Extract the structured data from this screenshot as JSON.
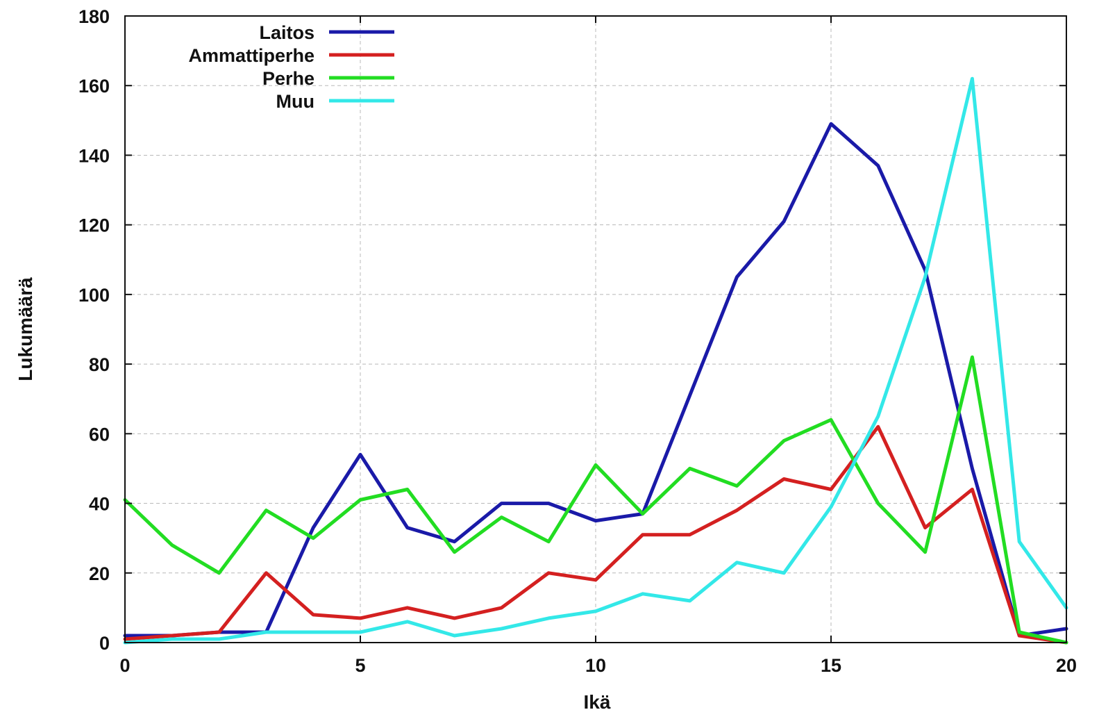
{
  "chart_data": {
    "type": "line",
    "title": "",
    "xlabel": "Ikä",
    "ylabel": "Lukumäärä",
    "xlim": [
      0,
      20
    ],
    "ylim": [
      0,
      180
    ],
    "x_ticks": [
      0,
      5,
      10,
      15,
      20
    ],
    "y_ticks": [
      0,
      20,
      40,
      60,
      80,
      100,
      120,
      140,
      160,
      180
    ],
    "grid": true,
    "legend_position": "top-left",
    "x": [
      0,
      1,
      2,
      3,
      4,
      5,
      6,
      7,
      8,
      9,
      10,
      11,
      12,
      13,
      14,
      15,
      16,
      17,
      18,
      19,
      20
    ],
    "series": [
      {
        "name": "Laitos",
        "color": "#1a1aa8",
        "values": [
          2,
          2,
          3,
          3,
          33,
          54,
          33,
          29,
          40,
          40,
          35,
          37,
          71,
          105,
          121,
          149,
          137,
          107,
          50,
          2,
          4
        ]
      },
      {
        "name": "Ammattiperhe",
        "color": "#d42020",
        "values": [
          1,
          2,
          3,
          20,
          8,
          7,
          10,
          7,
          10,
          20,
          18,
          31,
          31,
          38,
          47,
          44,
          62,
          33,
          44,
          2,
          0
        ]
      },
      {
        "name": "Perhe",
        "color": "#22dd22",
        "values": [
          41,
          28,
          20,
          38,
          30,
          41,
          44,
          26,
          36,
          29,
          51,
          37,
          50,
          45,
          58,
          64,
          40,
          26,
          82,
          3,
          0
        ]
      },
      {
        "name": "Muu",
        "color": "#33e8e8",
        "values": [
          0,
          1,
          1,
          3,
          3,
          3,
          6,
          2,
          4,
          7,
          9,
          14,
          12,
          23,
          20,
          39,
          65,
          105,
          162,
          29,
          10
        ]
      }
    ]
  }
}
